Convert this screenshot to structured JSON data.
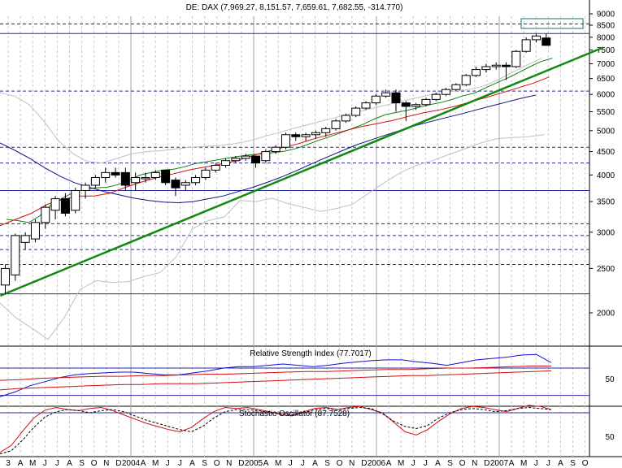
{
  "chart_data": [
    {
      "type": "candlestick",
      "title": "DE: DAX (7,969.27, 8,151.57, 7,659.61, 7,682.55, -314.770)",
      "scale": "log",
      "ylim": [
        2000,
        9000
      ],
      "y_ticks": [
        9000,
        8500,
        8000,
        7500,
        7000,
        6500,
        6000,
        5500,
        5000,
        4500,
        4000,
        3500,
        3000,
        2500,
        2000
      ],
      "x_tick_labels": [
        "3",
        "A",
        "M",
        "J",
        "J",
        "A",
        "S",
        "O",
        "N",
        "D",
        "2004",
        "A",
        "M",
        "J",
        "J",
        "A",
        "S",
        "O",
        "N",
        "D",
        "2005",
        "A",
        "M",
        "J",
        "J",
        "A",
        "S",
        "O",
        "N",
        "D",
        "2006",
        "A",
        "M",
        "J",
        "J",
        "A",
        "S",
        "O",
        "N",
        "D",
        "2007",
        "A",
        "M",
        "J",
        "J",
        "A",
        "S",
        "O"
      ],
      "horizontal_levels": [
        8550,
        8150,
        6100,
        4600,
        4250,
        3700,
        3130,
        2950,
        2750,
        2550,
        2200
      ],
      "candles": [
        {
          "x": 0,
          "open": 2300,
          "high": 2550,
          "low": 2200,
          "close": 2500
        },
        {
          "x": 1,
          "open": 2420,
          "high": 2980,
          "low": 2350,
          "close": 2950
        },
        {
          "x": 2,
          "open": 2850,
          "high": 3000,
          "low": 2750,
          "close": 2950
        },
        {
          "x": 3,
          "open": 2900,
          "high": 3200,
          "low": 2850,
          "close": 3150
        },
        {
          "x": 4,
          "open": 3150,
          "high": 3450,
          "low": 3050,
          "close": 3400
        },
        {
          "x": 5,
          "open": 3350,
          "high": 3600,
          "low": 3200,
          "close": 3550
        },
        {
          "x": 6,
          "open": 3550,
          "high": 3650,
          "low": 3250,
          "close": 3300
        },
        {
          "x": 7,
          "open": 3350,
          "high": 3750,
          "low": 3300,
          "close": 3700
        },
        {
          "x": 8,
          "open": 3700,
          "high": 3850,
          "low": 3550,
          "close": 3800
        },
        {
          "x": 9,
          "open": 3800,
          "high": 4000,
          "low": 3750,
          "close": 3950
        },
        {
          "x": 10,
          "open": 3950,
          "high": 4150,
          "low": 3850,
          "close": 4050
        },
        {
          "x": 11,
          "open": 4050,
          "high": 4150,
          "low": 3950,
          "close": 4000
        },
        {
          "x": 12,
          "open": 4050,
          "high": 4150,
          "low": 3700,
          "close": 3800
        },
        {
          "x": 13,
          "open": 3850,
          "high": 4050,
          "low": 3700,
          "close": 3950
        },
        {
          "x": 14,
          "open": 3950,
          "high": 4050,
          "low": 3850,
          "close": 3950
        },
        {
          "x": 15,
          "open": 3950,
          "high": 4100,
          "low": 3900,
          "close": 4050
        },
        {
          "x": 16,
          "open": 4100,
          "high": 4100,
          "low": 3800,
          "close": 3850
        },
        {
          "x": 17,
          "open": 3900,
          "high": 3950,
          "low": 3600,
          "close": 3750
        },
        {
          "x": 18,
          "open": 3800,
          "high": 3900,
          "low": 3700,
          "close": 3850
        },
        {
          "x": 19,
          "open": 3850,
          "high": 4000,
          "low": 3800,
          "close": 3950
        },
        {
          "x": 20,
          "open": 3950,
          "high": 4150,
          "low": 3900,
          "close": 4100
        },
        {
          "x": 21,
          "open": 4100,
          "high": 4250,
          "low": 4050,
          "close": 4200
        },
        {
          "x": 22,
          "open": 4200,
          "high": 4350,
          "low": 4150,
          "close": 4300
        },
        {
          "x": 23,
          "open": 4300,
          "high": 4400,
          "low": 4250,
          "close": 4350
        },
        {
          "x": 24,
          "open": 4350,
          "high": 4450,
          "low": 4300,
          "close": 4400
        },
        {
          "x": 25,
          "open": 4400,
          "high": 4400,
          "low": 4150,
          "close": 4250
        },
        {
          "x": 26,
          "open": 4300,
          "high": 4550,
          "low": 4250,
          "close": 4500
        },
        {
          "x": 27,
          "open": 4500,
          "high": 4650,
          "low": 4450,
          "close": 4600
        },
        {
          "x": 28,
          "open": 4600,
          "high": 4950,
          "low": 4550,
          "close": 4900
        },
        {
          "x": 29,
          "open": 4900,
          "high": 4950,
          "low": 4750,
          "close": 4850
        },
        {
          "x": 30,
          "open": 4850,
          "high": 4950,
          "low": 4750,
          "close": 4900
        },
        {
          "x": 31,
          "open": 4900,
          "high": 5000,
          "low": 4800,
          "close": 4950
        },
        {
          "x": 32,
          "open": 4950,
          "high": 5100,
          "low": 4850,
          "close": 5050
        },
        {
          "x": 33,
          "open": 5050,
          "high": 5300,
          "low": 5000,
          "close": 5250
        },
        {
          "x": 34,
          "open": 5250,
          "high": 5450,
          "low": 5200,
          "close": 5400
        },
        {
          "x": 35,
          "open": 5400,
          "high": 5650,
          "low": 5350,
          "close": 5600
        },
        {
          "x": 36,
          "open": 5600,
          "high": 5800,
          "low": 5550,
          "close": 5750
        },
        {
          "x": 37,
          "open": 5750,
          "high": 6000,
          "low": 5700,
          "close": 5950
        },
        {
          "x": 38,
          "open": 5950,
          "high": 6150,
          "low": 5900,
          "close": 6050
        },
        {
          "x": 39,
          "open": 6050,
          "high": 6150,
          "low": 5500,
          "close": 5750
        },
        {
          "x": 40,
          "open": 5750,
          "high": 5800,
          "low": 5250,
          "close": 5650
        },
        {
          "x": 41,
          "open": 5650,
          "high": 5750,
          "low": 5550,
          "close": 5700
        },
        {
          "x": 42,
          "open": 5700,
          "high": 5900,
          "low": 5650,
          "close": 5850
        },
        {
          "x": 43,
          "open": 5850,
          "high": 6050,
          "low": 5800,
          "close": 6000
        },
        {
          "x": 44,
          "open": 6000,
          "high": 6200,
          "low": 5950,
          "close": 6150
        },
        {
          "x": 45,
          "open": 6150,
          "high": 6350,
          "low": 6100,
          "close": 6300
        },
        {
          "x": 46,
          "open": 6300,
          "high": 6650,
          "low": 6250,
          "close": 6600
        },
        {
          "x": 47,
          "open": 6600,
          "high": 6900,
          "low": 6550,
          "close": 6800
        },
        {
          "x": 48,
          "open": 6800,
          "high": 7000,
          "low": 6700,
          "close": 6900
        },
        {
          "x": 49,
          "open": 6900,
          "high": 7050,
          "low": 6800,
          "close": 6950
        },
        {
          "x": 50,
          "open": 6950,
          "high": 7050,
          "low": 6450,
          "close": 6900
        },
        {
          "x": 51,
          "open": 6900,
          "high": 7500,
          "low": 6850,
          "close": 7450
        },
        {
          "x": 52,
          "open": 7450,
          "high": 8000,
          "low": 7400,
          "close": 7900
        },
        {
          "x": 53,
          "open": 7900,
          "high": 8150,
          "low": 7800,
          "close": 8050
        },
        {
          "x": 54,
          "open": 7970,
          "high": 8150,
          "low": 7660,
          "close": 7680
        }
      ],
      "sma_short": [
        3200,
        3180,
        3150,
        3260,
        3440,
        3560,
        3660,
        3720,
        3750,
        3760,
        3810,
        3900,
        4000,
        4050,
        4100,
        4120,
        4170,
        4240,
        4280,
        4320,
        4360,
        4400,
        4430,
        4450,
        4480,
        4510,
        4570,
        4660,
        4760,
        4850,
        4950,
        5050,
        5160,
        5300,
        5420,
        5480,
        5540,
        5620,
        5700,
        5760,
        5850,
        5960,
        6040,
        6200,
        6360,
        6520,
        6700,
        6900,
        7080,
        7200
      ],
      "sma_mid": [
        3100,
        3200,
        3300,
        3450,
        3540,
        3600,
        3600,
        3650,
        3760,
        3860,
        3950,
        4020,
        4100,
        4160,
        4220,
        4290,
        4400,
        4500,
        4590,
        4680,
        4800,
        4900,
        5000,
        5100,
        5180,
        5260,
        5370,
        5470,
        5550,
        5650,
        5780,
        5910,
        6050,
        6200,
        6350,
        6550
      ],
      "sma_long": [
        4700,
        4530,
        4350,
        4150,
        3980,
        3850,
        3760,
        3680,
        3620,
        3560,
        3520,
        3490,
        3480,
        3500,
        3550,
        3600,
        3680,
        3760,
        3860,
        3970,
        4100,
        4240,
        4380,
        4520,
        4660,
        4780,
        4900,
        5020,
        5140,
        5240,
        5340,
        5440,
        5550,
        5660,
        5770,
        5880,
        5980
      ],
      "trendline": {
        "start": {
          "x": -0.5,
          "y": 2180
        },
        "end": {
          "x": 59.7,
          "y": 7600
        }
      },
      "bollinger_upper": [
        6050,
        5950,
        5700,
        5250,
        4750,
        4450,
        4280,
        4250,
        4350,
        4450,
        4500,
        4520,
        4560,
        4600,
        4620,
        4640,
        4680,
        4750,
        4850,
        4950,
        5050,
        5150,
        5250,
        5350,
        5450,
        5550,
        5650,
        5750,
        5850,
        5950,
        6050,
        6100,
        6150,
        6250,
        6450,
        6700,
        6950,
        7200
      ],
      "bollinger_lower": [
        2100,
        1950,
        1850,
        1750,
        1950,
        2250,
        2350,
        2330,
        2340,
        2400,
        2450,
        2650,
        3050,
        3180,
        3240,
        3520,
        3500,
        3560,
        3460,
        3400,
        3330,
        3380,
        3450,
        3650,
        3850,
        4050,
        4200,
        4300,
        4430,
        4560,
        4700,
        4800,
        4830,
        4850,
        4900
      ]
    },
    {
      "type": "line",
      "title": "Relative Strength Index (77.7017)",
      "y_tick_labels": [
        "50"
      ],
      "horizontal_levels": [
        70,
        30
      ],
      "series": [
        {
          "values": [
            28,
            35,
            44,
            50,
            56,
            60,
            62,
            63,
            64,
            64,
            62,
            60,
            60,
            63,
            66,
            70,
            72,
            72,
            74,
            76,
            74,
            72,
            74,
            77,
            79,
            81,
            82,
            82,
            79,
            77,
            74,
            78,
            82,
            84,
            86,
            89,
            90,
            78
          ]
        },
        {
          "values": [
            38,
            40,
            41,
            42,
            43,
            44,
            45,
            46,
            46,
            47,
            47,
            47,
            48,
            49,
            50,
            51,
            52,
            53,
            54,
            55,
            56,
            57,
            58,
            59,
            59,
            60,
            61,
            62,
            63,
            64,
            65,
            66
          ]
        },
        {
          "values": [
            52,
            53,
            55,
            56,
            57,
            58,
            58,
            59,
            59,
            60,
            61,
            61,
            62,
            63,
            64,
            65,
            65,
            66,
            67,
            68,
            68,
            69,
            70,
            70,
            71,
            72,
            73,
            73
          ]
        }
      ]
    },
    {
      "type": "line",
      "title": "Stochastic Oscillator (87.7528)",
      "y_tick_labels": [
        "50"
      ],
      "horizontal_levels": [
        80
      ],
      "series": [
        {
          "values": [
            5,
            18,
            45,
            70,
            85,
            90,
            86,
            84,
            88,
            90,
            84,
            76,
            68,
            60,
            54,
            48,
            44,
            52,
            68,
            82,
            90,
            88,
            90,
            86,
            82,
            76,
            74,
            82,
            88,
            90,
            86,
            90,
            92,
            86,
            80,
            62,
            44,
            38,
            48,
            64,
            78,
            88,
            92,
            90,
            86,
            82,
            88,
            94,
            92,
            86
          ]
        },
        {
          "values": [
            2,
            8,
            28,
            52,
            72,
            82,
            86,
            84,
            80,
            84,
            86,
            82,
            74,
            66,
            60,
            54,
            48,
            44,
            54,
            70,
            82,
            86,
            86,
            84,
            80,
            78,
            76,
            80,
            86,
            88,
            86,
            88,
            90,
            88,
            78,
            64,
            54,
            50,
            56,
            70,
            80,
            86,
            88,
            86,
            82,
            84,
            88,
            90,
            88,
            86
          ]
        }
      ]
    }
  ]
}
